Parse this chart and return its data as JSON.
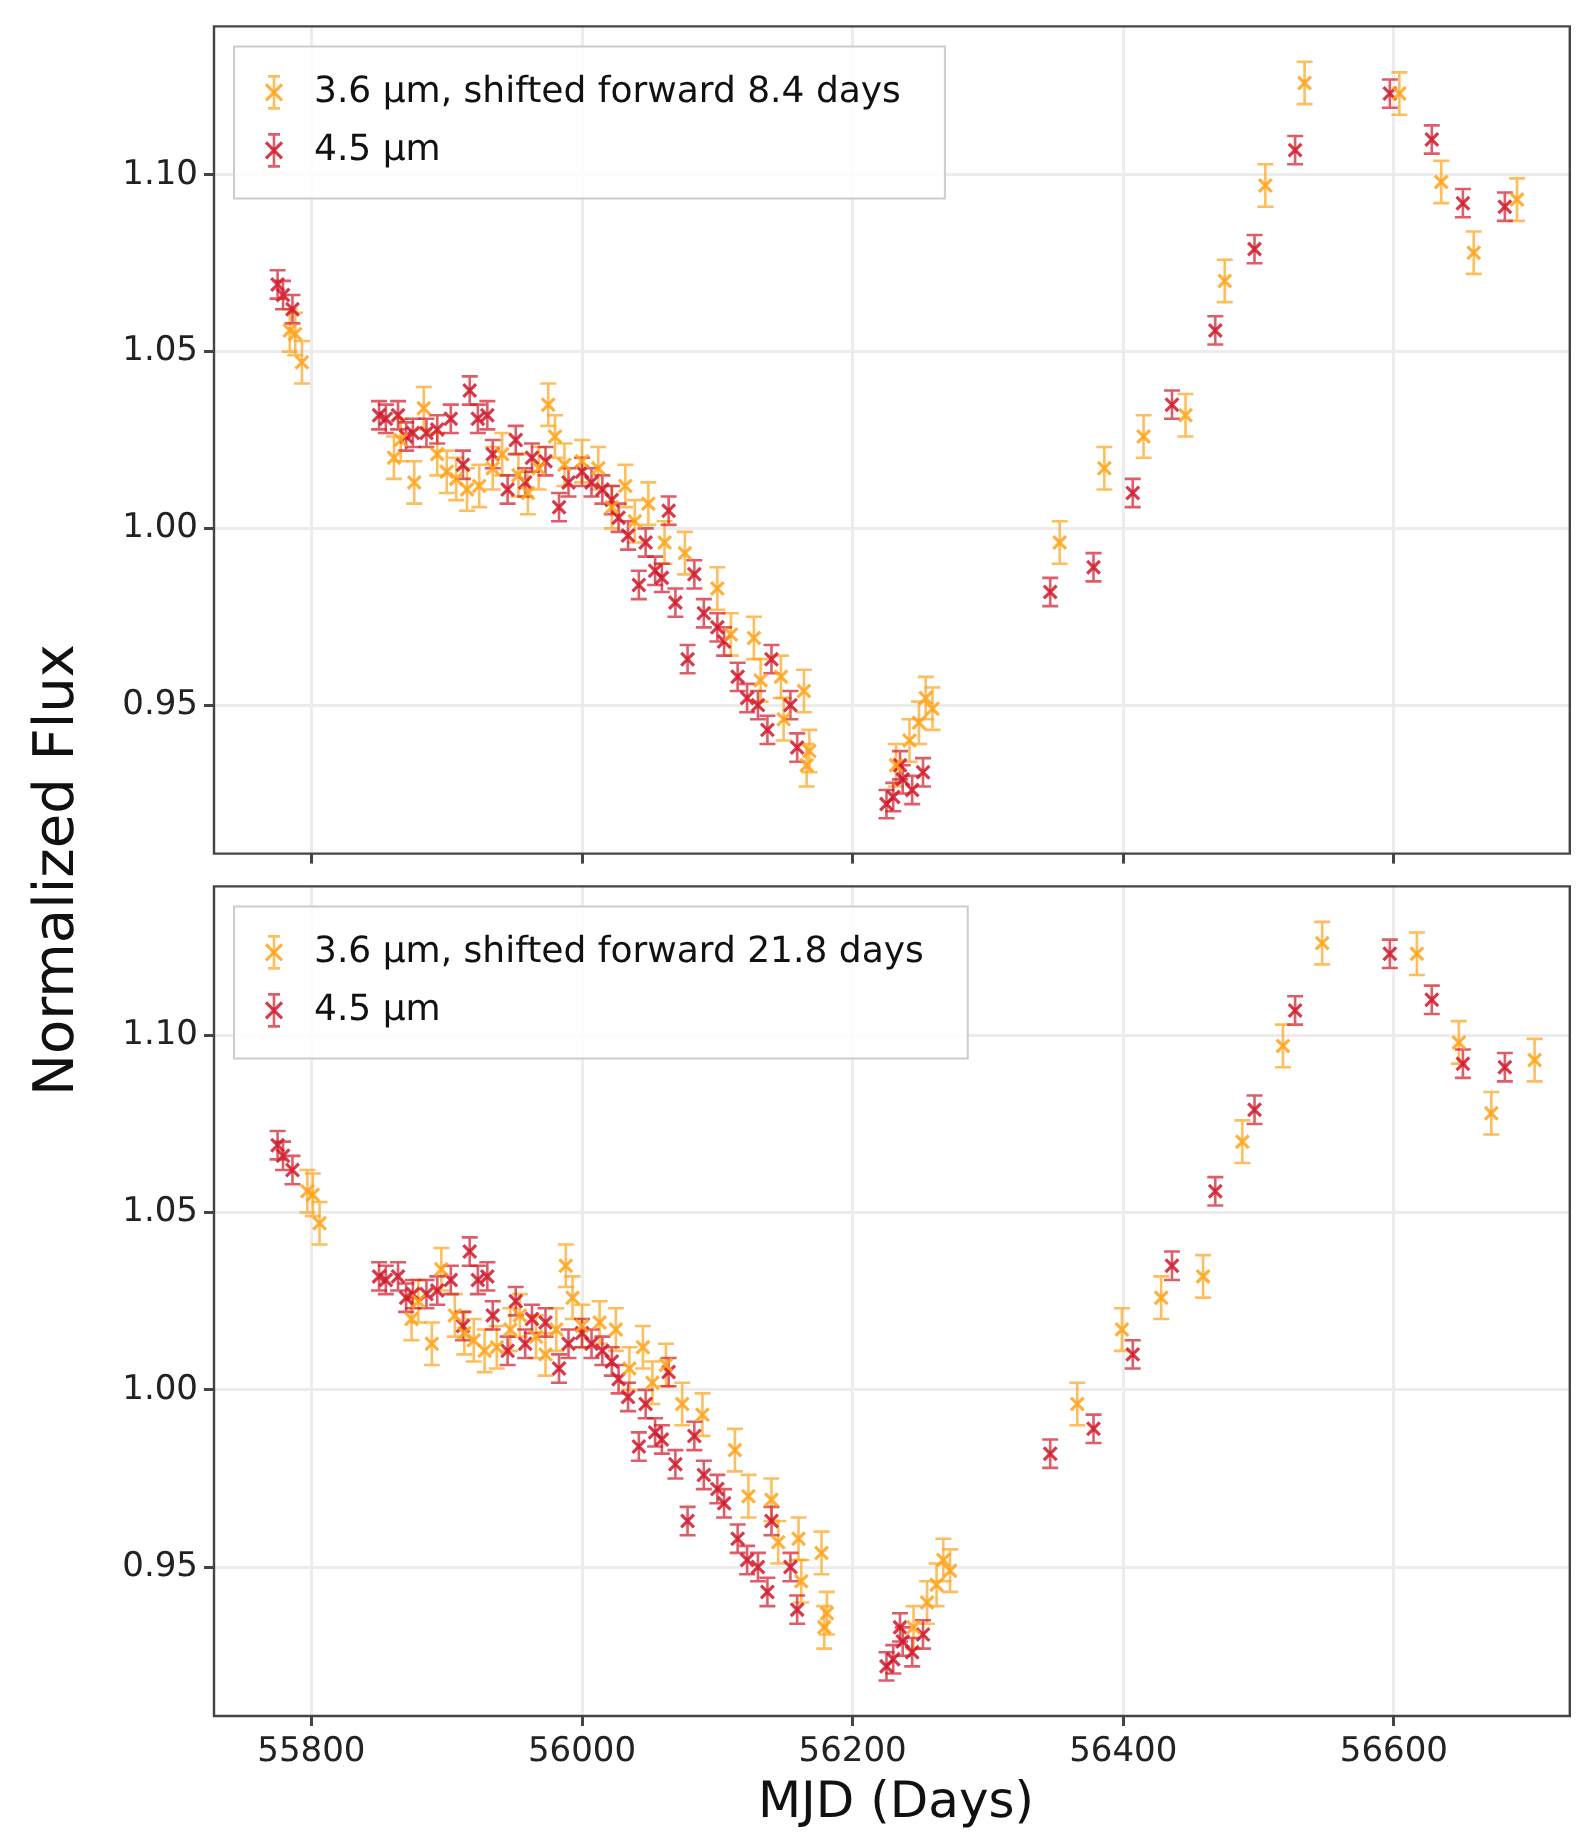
{
  "chart_data": [
    {
      "type": "scatter",
      "ylabel": "Normalized Flux",
      "xlim": [
        55728,
        56730
      ],
      "ylim": [
        0.908,
        1.142
      ],
      "xticks": [
        55800,
        56000,
        56200,
        56400,
        56600
      ],
      "yticks": [
        {
          "value": 0.95,
          "label": "0.95"
        },
        {
          "value": 1.0,
          "label": "1.00"
        },
        {
          "value": 1.05,
          "label": "1.05"
        },
        {
          "value": 1.1,
          "label": "1.10"
        }
      ],
      "tick_labels": "y",
      "grid": true,
      "legend": "top left",
      "marker": "cross",
      "series": [
        {
          "name": "3.6 μm, shifted forward 8.4 days",
          "color": "#ffa31a",
          "x": [
            55784,
            55788,
            55793,
            55861,
            55866,
            55876,
            55883,
            55893,
            55900,
            55907,
            55915,
            55924,
            55934,
            55941,
            55953,
            55960,
            55968,
            55975,
            55980,
            55987,
            56000,
            56012,
            56022,
            56032,
            56039,
            56049,
            56061,
            56076,
            56100,
            56110,
            56127,
            56132,
            56147,
            56149,
            56164,
            56166,
            56168,
            56232,
            56242,
            56249,
            56254,
            56259,
            56353,
            56386,
            56415,
            56446,
            56475,
            56505,
            56534,
            56604,
            56635,
            56659,
            56691
          ],
          "values": [
            1.056,
            1.055,
            1.047,
            1.02,
            1.025,
            1.013,
            1.034,
            1.021,
            1.016,
            1.014,
            1.011,
            1.012,
            1.017,
            1.021,
            1.015,
            1.01,
            1.017,
            1.035,
            1.026,
            1.018,
            1.019,
            1.017,
            1.006,
            1.012,
            1.002,
            1.007,
            0.996,
            0.993,
            0.983,
            0.97,
            0.969,
            0.957,
            0.958,
            0.946,
            0.954,
            0.933,
            0.937,
            0.933,
            0.94,
            0.945,
            0.952,
            0.949,
            0.996,
            1.017,
            1.026,
            1.032,
            1.07,
            1.097,
            1.126,
            1.123,
            1.098,
            1.078,
            1.093
          ],
          "errors": [
            0.006,
            0.006,
            0.006,
            0.006,
            0.006,
            0.006,
            0.006,
            0.006,
            0.006,
            0.006,
            0.006,
            0.006,
            0.006,
            0.006,
            0.006,
            0.006,
            0.006,
            0.006,
            0.006,
            0.006,
            0.006,
            0.006,
            0.006,
            0.006,
            0.006,
            0.006,
            0.006,
            0.006,
            0.006,
            0.006,
            0.006,
            0.006,
            0.006,
            0.006,
            0.006,
            0.006,
            0.006,
            0.006,
            0.006,
            0.006,
            0.006,
            0.006,
            0.006,
            0.006,
            0.006,
            0.006,
            0.006,
            0.006,
            0.006,
            0.006,
            0.006,
            0.006,
            0.006
          ]
        },
        {
          "name": "4.5 μm",
          "color": "#d0182a",
          "x": [
            55775,
            55779,
            55786,
            55850,
            55855,
            55864,
            55870,
            55875,
            55885,
            55893,
            55903,
            55912,
            55917,
            55923,
            55930,
            55934,
            55945,
            55951,
            55958,
            55963,
            55973,
            55983,
            55990,
            56000,
            56007,
            56015,
            56022,
            56027,
            56034,
            56042,
            56047,
            56054,
            56059,
            56064,
            56069,
            56078,
            56083,
            56090,
            56100,
            56105,
            56115,
            56122,
            56130,
            56137,
            56140,
            56154,
            56159,
            56225,
            56230,
            56235,
            56237,
            56244,
            56252,
            56346,
            56378,
            56407,
            56436,
            56468,
            56497,
            56527,
            56597,
            56628,
            56651,
            56682
          ],
          "values": [
            1.069,
            1.066,
            1.062,
            1.032,
            1.031,
            1.032,
            1.026,
            1.027,
            1.027,
            1.028,
            1.031,
            1.018,
            1.039,
            1.031,
            1.032,
            1.021,
            1.011,
            1.025,
            1.013,
            1.02,
            1.019,
            1.006,
            1.013,
            1.016,
            1.013,
            1.011,
            1.008,
            1.003,
            0.998,
            0.984,
            0.996,
            0.988,
            0.986,
            1.005,
            0.979,
            0.963,
            0.987,
            0.976,
            0.972,
            0.968,
            0.958,
            0.952,
            0.95,
            0.943,
            0.963,
            0.95,
            0.938,
            0.922,
            0.924,
            0.933,
            0.929,
            0.926,
            0.931,
            0.982,
            0.989,
            1.01,
            1.035,
            1.056,
            1.079,
            1.107,
            1.123,
            1.11,
            1.092,
            1.091
          ],
          "errors": [
            0.004,
            0.004,
            0.004,
            0.004,
            0.004,
            0.004,
            0.004,
            0.004,
            0.004,
            0.004,
            0.004,
            0.004,
            0.004,
            0.004,
            0.004,
            0.004,
            0.004,
            0.004,
            0.004,
            0.004,
            0.004,
            0.004,
            0.004,
            0.004,
            0.004,
            0.004,
            0.004,
            0.004,
            0.004,
            0.004,
            0.004,
            0.004,
            0.004,
            0.004,
            0.004,
            0.004,
            0.004,
            0.004,
            0.004,
            0.004,
            0.004,
            0.004,
            0.004,
            0.004,
            0.004,
            0.004,
            0.004,
            0.004,
            0.004,
            0.004,
            0.004,
            0.004,
            0.004,
            0.004,
            0.004,
            0.004,
            0.004,
            0.004,
            0.004,
            0.004,
            0.004,
            0.004,
            0.004,
            0.004
          ]
        }
      ]
    },
    {
      "type": "scatter",
      "xlabel": "MJD (Days)",
      "xlim": [
        55728,
        56730
      ],
      "ylim": [
        0.908,
        1.142
      ],
      "xticks": [
        55800,
        56000,
        56200,
        56400,
        56600
      ],
      "yticks": [
        {
          "value": 0.95,
          "label": "0.95"
        },
        {
          "value": 1.0,
          "label": "1.00"
        },
        {
          "value": 1.05,
          "label": "1.05"
        },
        {
          "value": 1.1,
          "label": "1.10"
        }
      ],
      "grid": true,
      "legend": "top left",
      "marker": "cross",
      "series": [
        {
          "name": "3.6 μm, shifted forward 21.8 days",
          "color": "#ffa31a",
          "x": [
            55797,
            55801,
            55806,
            55874,
            55879,
            55889,
            55896,
            55906,
            55913,
            55920,
            55928,
            55937,
            55947,
            55954,
            55966,
            55973,
            55981,
            55988,
            55993,
            56000,
            56013,
            56025,
            56035,
            56045,
            56052,
            56062,
            56074,
            56089,
            56113,
            56123,
            56140,
            56145,
            56160,
            56162,
            56177,
            56179,
            56181,
            56245,
            56255,
            56262,
            56267,
            56272,
            56366,
            56399,
            56428,
            56459,
            56488,
            56518,
            56547,
            56617,
            56648,
            56672,
            56704
          ],
          "values": [
            1.056,
            1.055,
            1.047,
            1.02,
            1.025,
            1.013,
            1.034,
            1.021,
            1.016,
            1.014,
            1.011,
            1.012,
            1.017,
            1.021,
            1.015,
            1.01,
            1.017,
            1.035,
            1.026,
            1.018,
            1.019,
            1.017,
            1.006,
            1.012,
            1.002,
            1.007,
            0.996,
            0.993,
            0.983,
            0.97,
            0.969,
            0.957,
            0.958,
            0.946,
            0.954,
            0.933,
            0.937,
            0.933,
            0.94,
            0.945,
            0.952,
            0.949,
            0.996,
            1.017,
            1.026,
            1.032,
            1.07,
            1.097,
            1.126,
            1.123,
            1.098,
            1.078,
            1.093
          ],
          "errors": [
            0.006,
            0.006,
            0.006,
            0.006,
            0.006,
            0.006,
            0.006,
            0.006,
            0.006,
            0.006,
            0.006,
            0.006,
            0.006,
            0.006,
            0.006,
            0.006,
            0.006,
            0.006,
            0.006,
            0.006,
            0.006,
            0.006,
            0.006,
            0.006,
            0.006,
            0.006,
            0.006,
            0.006,
            0.006,
            0.006,
            0.006,
            0.006,
            0.006,
            0.006,
            0.006,
            0.006,
            0.006,
            0.006,
            0.006,
            0.006,
            0.006,
            0.006,
            0.006,
            0.006,
            0.006,
            0.006,
            0.006,
            0.006,
            0.006,
            0.006,
            0.006,
            0.006,
            0.006
          ]
        },
        {
          "name": "4.5 μm",
          "color": "#d0182a",
          "x": [
            55775,
            55779,
            55786,
            55850,
            55855,
            55864,
            55870,
            55875,
            55885,
            55893,
            55903,
            55912,
            55917,
            55923,
            55930,
            55934,
            55945,
            55951,
            55958,
            55963,
            55973,
            55983,
            55990,
            56000,
            56007,
            56015,
            56022,
            56027,
            56034,
            56042,
            56047,
            56054,
            56059,
            56064,
            56069,
            56078,
            56083,
            56090,
            56100,
            56105,
            56115,
            56122,
            56130,
            56137,
            56140,
            56154,
            56159,
            56225,
            56230,
            56235,
            56237,
            56244,
            56252,
            56346,
            56378,
            56407,
            56436,
            56468,
            56497,
            56527,
            56597,
            56628,
            56651,
            56682
          ],
          "values": [
            1.069,
            1.066,
            1.062,
            1.032,
            1.031,
            1.032,
            1.026,
            1.027,
            1.027,
            1.028,
            1.031,
            1.018,
            1.039,
            1.031,
            1.032,
            1.021,
            1.011,
            1.025,
            1.013,
            1.02,
            1.019,
            1.006,
            1.013,
            1.016,
            1.013,
            1.011,
            1.008,
            1.003,
            0.998,
            0.984,
            0.996,
            0.988,
            0.986,
            1.005,
            0.979,
            0.963,
            0.987,
            0.976,
            0.972,
            0.968,
            0.958,
            0.952,
            0.95,
            0.943,
            0.963,
            0.95,
            0.938,
            0.922,
            0.924,
            0.933,
            0.929,
            0.926,
            0.931,
            0.982,
            0.989,
            1.01,
            1.035,
            1.056,
            1.079,
            1.107,
            1.123,
            1.11,
            1.092,
            1.091
          ],
          "errors": [
            0.004,
            0.004,
            0.004,
            0.004,
            0.004,
            0.004,
            0.004,
            0.004,
            0.004,
            0.004,
            0.004,
            0.004,
            0.004,
            0.004,
            0.004,
            0.004,
            0.004,
            0.004,
            0.004,
            0.004,
            0.004,
            0.004,
            0.004,
            0.004,
            0.004,
            0.004,
            0.004,
            0.004,
            0.004,
            0.004,
            0.004,
            0.004,
            0.004,
            0.004,
            0.004,
            0.004,
            0.004,
            0.004,
            0.004,
            0.004,
            0.004,
            0.004,
            0.004,
            0.004,
            0.004,
            0.004,
            0.004,
            0.004,
            0.004,
            0.004,
            0.004,
            0.004,
            0.004,
            0.004,
            0.004,
            0.004,
            0.004,
            0.004,
            0.004,
            0.004,
            0.004,
            0.004,
            0.004,
            0.004
          ]
        }
      ]
    }
  ]
}
